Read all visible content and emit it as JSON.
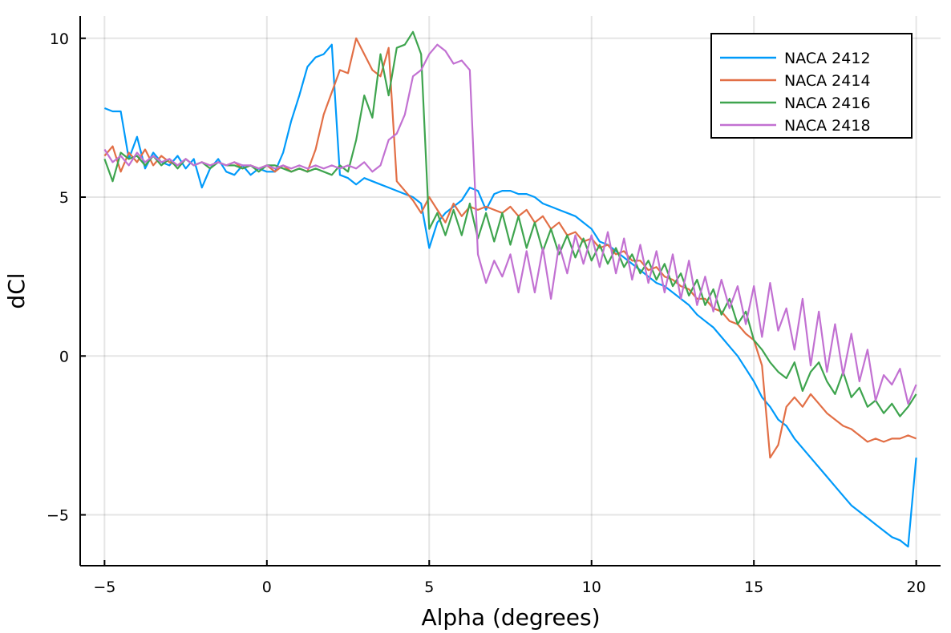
{
  "chart_data": {
    "type": "line",
    "title": "",
    "xlabel": "Alpha (degrees)",
    "ylabel": "dCl",
    "xlim": [
      -5.75,
      20.75
    ],
    "ylim": [
      -6.6,
      10.7
    ],
    "xticks": [
      -5,
      0,
      5,
      10,
      15,
      20
    ],
    "xtick_labels": [
      "−5",
      "0",
      "5",
      "10",
      "15",
      "20"
    ],
    "yticks": [
      -5,
      0,
      5,
      10
    ],
    "ytick_labels": [
      "−5",
      "0",
      "5",
      "10"
    ],
    "grid": true,
    "legend_position": "top-right",
    "series": [
      {
        "name": "NACA 2412",
        "color": "#009AFA",
        "x": [
          -5,
          -4.75,
          -4.5,
          -4.25,
          -4,
          -3.75,
          -3.5,
          -3.25,
          -3,
          -2.75,
          -2.5,
          -2.25,
          -2,
          -1.75,
          -1.5,
          -1.25,
          -1,
          -0.75,
          -0.5,
          -0.25,
          0,
          0.25,
          0.5,
          0.75,
          1,
          1.25,
          1.5,
          1.75,
          2,
          2.25,
          2.5,
          2.75,
          3,
          3.25,
          3.5,
          3.75,
          4,
          4.25,
          4.5,
          4.75,
          5,
          5.25,
          5.5,
          5.75,
          6,
          6.25,
          6.5,
          6.75,
          7,
          7.25,
          7.5,
          7.75,
          8,
          8.25,
          8.5,
          8.75,
          9,
          9.25,
          9.5,
          9.75,
          10,
          10.25,
          10.5,
          10.75,
          11,
          11.25,
          11.5,
          11.75,
          12,
          12.25,
          12.5,
          12.75,
          13,
          13.25,
          13.5,
          13.75,
          14,
          14.25,
          14.5,
          14.75,
          15,
          15.25,
          15.5,
          15.75,
          16,
          16.25,
          16.5,
          16.75,
          17,
          17.25,
          17.5,
          17.75,
          18,
          18.25,
          18.5,
          18.75,
          19,
          19.25,
          19.5,
          19.75,
          20
        ],
        "y": [
          7.8,
          7.7,
          7.7,
          6.2,
          6.9,
          5.9,
          6.4,
          6.1,
          6,
          6.3,
          5.9,
          6.2,
          5.3,
          5.9,
          6.2,
          5.8,
          5.7,
          6,
          5.7,
          5.9,
          5.8,
          5.8,
          6.4,
          7.4,
          8.2,
          9.1,
          9.4,
          9.5,
          9.8,
          5.7,
          5.6,
          5.4,
          5.6,
          5.5,
          5.4,
          5.3,
          5.2,
          5.1,
          5,
          4.8,
          3.4,
          4.2,
          4.5,
          4.7,
          4.9,
          5.3,
          5.2,
          4.6,
          5.1,
          5.2,
          5.2,
          5.1,
          5.1,
          5,
          4.8,
          4.7,
          4.6,
          4.5,
          4.4,
          4.2,
          4,
          3.6,
          3.5,
          3.3,
          3.1,
          2.9,
          2.7,
          2.5,
          2.3,
          2.2,
          2,
          1.8,
          1.6,
          1.3,
          1.1,
          0.9,
          0.6,
          0.3,
          0,
          -0.4,
          -0.8,
          -1.3,
          -1.6,
          -2,
          -2.2,
          -2.6,
          -2.9,
          -3.2,
          -3.5,
          -3.8,
          -4.1,
          -4.4,
          -4.7,
          -4.9,
          -5.1,
          -5.3,
          -5.5,
          -5.7,
          -5.8,
          -6,
          -3.2
        ]
      },
      {
        "name": "NACA 2414",
        "color": "#E26F46",
        "x": [
          -5,
          -4.75,
          -4.5,
          -4.25,
          -4,
          -3.75,
          -3.5,
          -3.25,
          -3,
          -2.75,
          -2.5,
          -2.25,
          -2,
          -1.75,
          -1.5,
          -1.25,
          -1,
          -0.75,
          -0.5,
          -0.25,
          0,
          0.25,
          0.5,
          0.75,
          1,
          1.25,
          1.5,
          1.75,
          2,
          2.25,
          2.5,
          2.75,
          3,
          3.25,
          3.5,
          3.75,
          4,
          4.25,
          4.5,
          4.75,
          5,
          5.25,
          5.5,
          5.75,
          6,
          6.25,
          6.5,
          6.75,
          7,
          7.25,
          7.5,
          7.75,
          8,
          8.25,
          8.5,
          8.75,
          9,
          9.25,
          9.5,
          9.75,
          10,
          10.25,
          10.5,
          10.75,
          11,
          11.25,
          11.5,
          11.75,
          12,
          12.25,
          12.5,
          12.75,
          13,
          13.25,
          13.5,
          13.75,
          14,
          14.25,
          14.5,
          14.75,
          15,
          15.25,
          15.5,
          15.75,
          16,
          16.25,
          16.5,
          16.75,
          17,
          17.25,
          17.5,
          17.75,
          18,
          18.25,
          18.5,
          18.75,
          19,
          19.25,
          19.5,
          19.75,
          20
        ],
        "y": [
          6.3,
          6.6,
          5.8,
          6.4,
          6.1,
          6.5,
          6,
          6.3,
          6.1,
          6,
          6.2,
          6,
          6.1,
          6,
          6.1,
          6,
          6.1,
          5.9,
          6,
          5.9,
          6,
          5.8,
          6,
          5.8,
          5.9,
          5.8,
          6.5,
          7.6,
          8.3,
          9,
          8.9,
          10,
          9.5,
          9,
          8.8,
          9.7,
          5.5,
          5.2,
          4.9,
          4.5,
          5,
          4.6,
          4.2,
          4.8,
          4.4,
          4.7,
          4.6,
          4.7,
          4.6,
          4.5,
          4.7,
          4.4,
          4.6,
          4.2,
          4.4,
          4,
          4.2,
          3.8,
          3.9,
          3.6,
          3.7,
          3.4,
          3.5,
          3.2,
          3.3,
          3,
          3,
          2.7,
          2.8,
          2.5,
          2.4,
          2.2,
          2.1,
          1.8,
          1.8,
          1.5,
          1.4,
          1.1,
          1,
          0.7,
          0.5,
          -0.3,
          -3.2,
          -2.8,
          -1.6,
          -1.3,
          -1.6,
          -1.2,
          -1.5,
          -1.8,
          -2,
          -2.2,
          -2.3,
          -2.5,
          -2.7,
          -2.6,
          -2.7,
          -2.6,
          -2.6,
          -2.5,
          -2.6
        ]
      },
      {
        "name": "NACA 2416",
        "color": "#3EA44E",
        "x": [
          -5,
          -4.75,
          -4.5,
          -4.25,
          -4,
          -3.75,
          -3.5,
          -3.25,
          -3,
          -2.75,
          -2.5,
          -2.25,
          -2,
          -1.75,
          -1.5,
          -1.25,
          -1,
          -0.75,
          -0.5,
          -0.25,
          0,
          0.25,
          0.5,
          0.75,
          1,
          1.25,
          1.5,
          1.75,
          2,
          2.25,
          2.5,
          2.75,
          3,
          3.25,
          3.5,
          3.75,
          4,
          4.25,
          4.5,
          4.75,
          5,
          5.25,
          5.5,
          5.75,
          6,
          6.25,
          6.5,
          6.75,
          7,
          7.25,
          7.5,
          7.75,
          8,
          8.25,
          8.5,
          8.75,
          9,
          9.25,
          9.5,
          9.75,
          10,
          10.25,
          10.5,
          10.75,
          11,
          11.25,
          11.5,
          11.75,
          12,
          12.25,
          12.5,
          12.75,
          13,
          13.25,
          13.5,
          13.75,
          14,
          14.25,
          14.5,
          14.75,
          15,
          15.25,
          15.5,
          15.75,
          16,
          16.25,
          16.5,
          16.75,
          17,
          17.25,
          17.5,
          17.75,
          18,
          18.25,
          18.5,
          18.75,
          19,
          19.25,
          19.5,
          19.75,
          20
        ],
        "y": [
          6.2,
          5.5,
          6.4,
          6.2,
          6.3,
          6,
          6.3,
          6,
          6.2,
          5.9,
          6.2,
          6,
          6.1,
          5.9,
          6.1,
          6,
          6,
          5.9,
          6,
          5.8,
          6,
          6,
          5.9,
          5.8,
          5.9,
          5.8,
          5.9,
          5.8,
          5.7,
          6,
          5.8,
          6.8,
          8.2,
          7.5,
          9.5,
          8.2,
          9.7,
          9.8,
          10.2,
          9.5,
          4,
          4.5,
          3.8,
          4.6,
          3.8,
          4.8,
          3.7,
          4.5,
          3.6,
          4.5,
          3.5,
          4.4,
          3.4,
          4.2,
          3.3,
          4,
          3.2,
          3.8,
          3.1,
          3.7,
          3,
          3.5,
          2.9,
          3.4,
          2.8,
          3.2,
          2.6,
          3,
          2.4,
          2.9,
          2.2,
          2.6,
          1.9,
          2.4,
          1.6,
          2.1,
          1.3,
          1.8,
          1,
          1.4,
          0.5,
          0.2,
          -0.2,
          -0.5,
          -0.7,
          -0.2,
          -1.1,
          -0.5,
          -0.2,
          -0.8,
          -1.2,
          -0.5,
          -1.3,
          -1,
          -1.6,
          -1.4,
          -1.8,
          -1.5,
          -1.9,
          -1.6,
          -1.2
        ]
      },
      {
        "name": "NACA 2418",
        "color": "#C271D2",
        "x": [
          -5,
          -4.75,
          -4.5,
          -4.25,
          -4,
          -3.75,
          -3.5,
          -3.25,
          -3,
          -2.75,
          -2.5,
          -2.25,
          -2,
          -1.75,
          -1.5,
          -1.25,
          -1,
          -0.75,
          -0.5,
          -0.25,
          0,
          0.25,
          0.5,
          0.75,
          1,
          1.25,
          1.5,
          1.75,
          2,
          2.25,
          2.5,
          2.75,
          3,
          3.25,
          3.5,
          3.75,
          4,
          4.25,
          4.5,
          4.75,
          5,
          5.25,
          5.5,
          5.75,
          6,
          6.25,
          6.5,
          6.75,
          7,
          7.25,
          7.5,
          7.75,
          8,
          8.25,
          8.5,
          8.75,
          9,
          9.25,
          9.5,
          9.75,
          10,
          10.25,
          10.5,
          10.75,
          11,
          11.25,
          11.5,
          11.75,
          12,
          12.25,
          12.5,
          12.75,
          13,
          13.25,
          13.5,
          13.75,
          14,
          14.25,
          14.5,
          14.75,
          15,
          15.25,
          15.5,
          15.75,
          16,
          16.25,
          16.5,
          16.75,
          17,
          17.25,
          17.5,
          17.75,
          18,
          18.25,
          18.5,
          18.75,
          19,
          19.25,
          19.5,
          19.75,
          20
        ],
        "y": [
          6.5,
          6.1,
          6.3,
          6,
          6.4,
          6.1,
          6.3,
          6.1,
          6.2,
          6,
          6.2,
          6,
          6.1,
          6,
          6.1,
          6,
          6.1,
          6,
          6,
          5.9,
          6,
          5.9,
          6,
          5.9,
          6,
          5.9,
          6,
          5.9,
          6,
          5.9,
          6,
          5.9,
          6.1,
          5.8,
          6,
          6.8,
          7,
          7.6,
          8.8,
          9,
          9.5,
          9.8,
          9.6,
          9.2,
          9.3,
          9,
          3.2,
          2.3,
          3,
          2.5,
          3.2,
          2,
          3.3,
          2,
          3.4,
          1.8,
          3.5,
          2.6,
          3.8,
          2.9,
          3.8,
          2.8,
          3.9,
          2.6,
          3.7,
          2.4,
          3.5,
          2.3,
          3.3,
          2,
          3.2,
          1.8,
          3,
          1.6,
          2.5,
          1.4,
          2.4,
          1.5,
          2.2,
          1,
          2.2,
          0.6,
          2.3,
          0.8,
          1.5,
          0.2,
          1.8,
          -0.3,
          1.4,
          -0.5,
          1,
          -0.6,
          0.7,
          -0.8,
          0.2,
          -1.4,
          -0.6,
          -0.9,
          -0.4,
          -1.5,
          -0.9
        ]
      }
    ]
  }
}
